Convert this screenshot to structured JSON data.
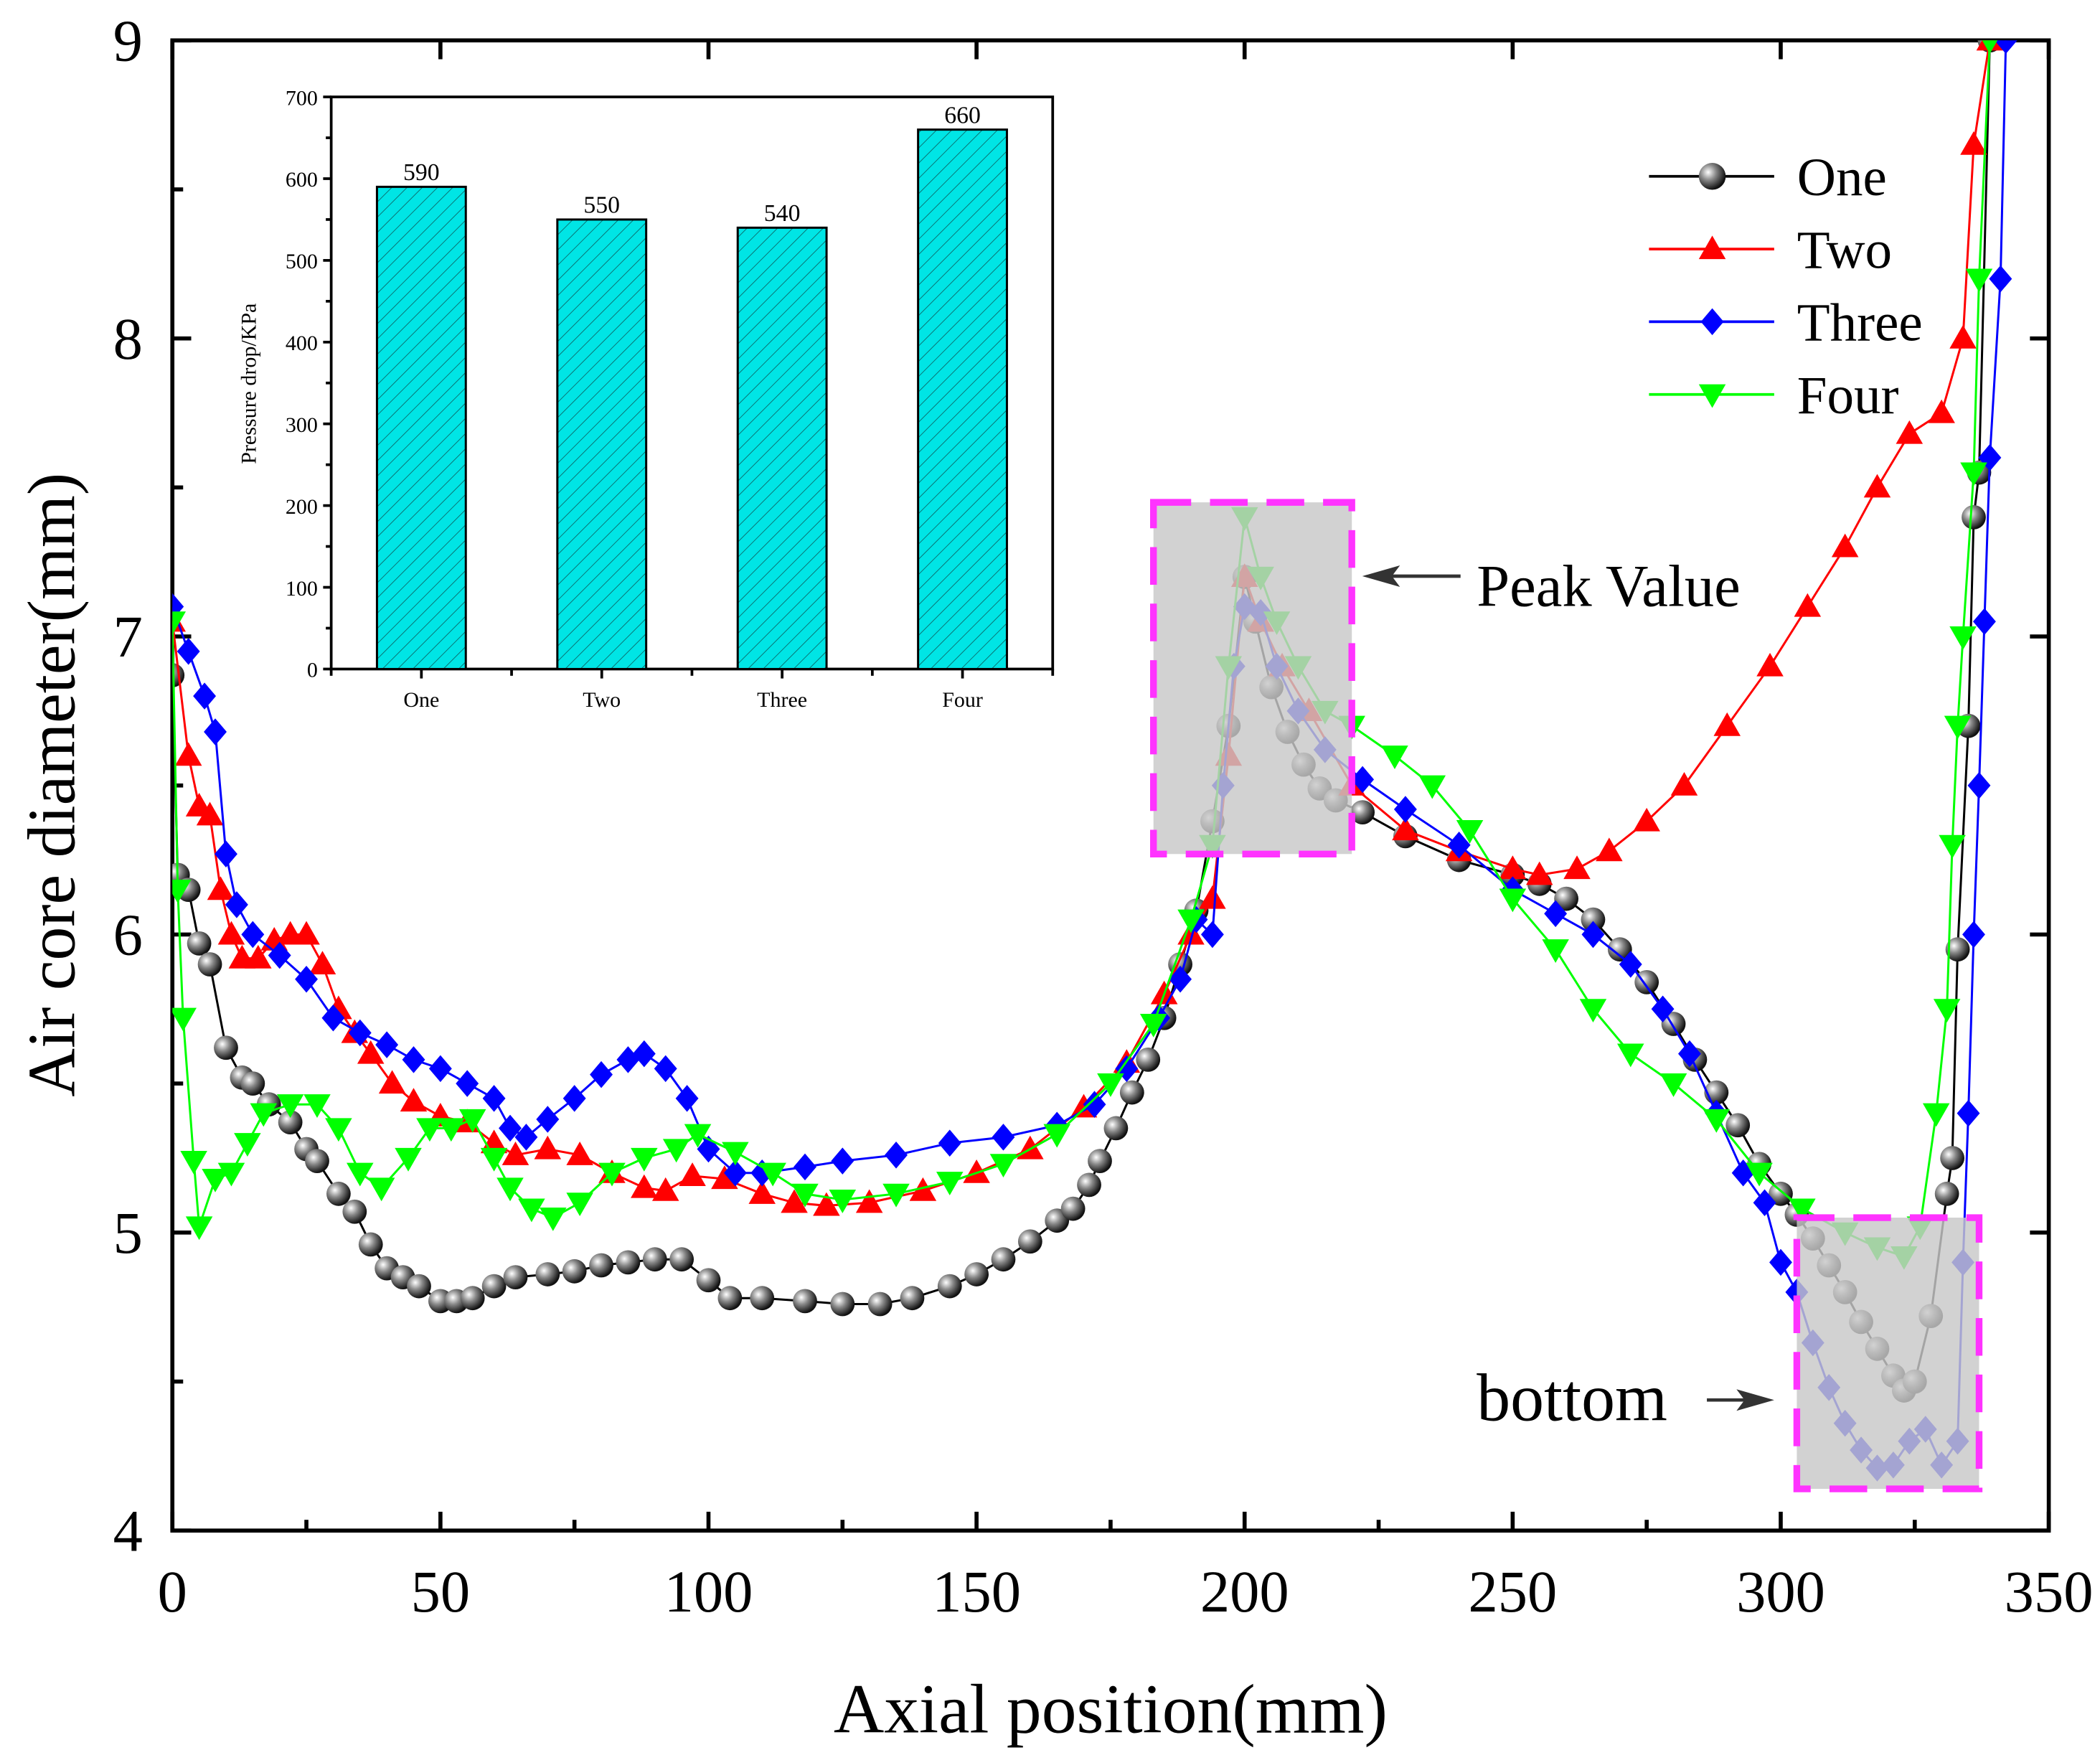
{
  "chart_data": [
    {
      "type": "line",
      "xlabel": "Axial position(mm)",
      "ylabel": "Air core diameter(mm)",
      "xlim": [
        0,
        350
      ],
      "ylim": [
        4,
        9
      ],
      "xticks": [
        "0",
        "50",
        "100",
        "150",
        "200",
        "250",
        "300",
        "350"
      ],
      "yticks": [
        "4",
        "5",
        "6",
        "7",
        "8",
        "9"
      ],
      "legend_position": "top-right",
      "series": [
        {
          "name": "One",
          "color": "#000000",
          "marker": "sphere",
          "x": [
            0,
            1,
            3,
            5,
            7,
            10,
            13,
            15,
            18,
            22,
            25,
            27,
            31,
            34,
            37,
            40,
            43,
            46,
            50,
            53,
            56,
            60,
            64,
            70,
            75,
            80,
            85,
            90,
            95,
            100,
            104,
            110,
            118,
            125,
            132,
            138,
            145,
            150,
            155,
            160,
            165,
            168,
            171,
            173,
            176,
            179,
            182,
            185,
            188,
            191,
            194,
            197,
            200,
            202,
            205,
            208,
            211,
            214,
            217,
            222,
            230,
            240,
            250,
            255,
            260,
            265,
            270,
            275,
            280,
            284,
            288,
            292,
            296,
            300,
            303,
            306,
            309,
            312,
            315,
            318,
            321,
            323,
            325,
            328,
            331,
            332,
            333,
            335,
            336,
            337,
            339
          ],
          "y": [
            6.87,
            6.2,
            6.15,
            5.97,
            5.9,
            5.62,
            5.52,
            5.5,
            5.43,
            5.37,
            5.28,
            5.24,
            5.13,
            5.07,
            4.96,
            4.88,
            4.85,
            4.82,
            4.77,
            4.77,
            4.78,
            4.82,
            4.85,
            4.86,
            4.87,
            4.89,
            4.9,
            4.91,
            4.91,
            4.84,
            4.78,
            4.78,
            4.77,
            4.76,
            4.76,
            4.78,
            4.82,
            4.86,
            4.91,
            4.97,
            5.04,
            5.08,
            5.16,
            5.24,
            5.35,
            5.47,
            5.58,
            5.72,
            5.9,
            6.08,
            6.38,
            6.7,
            7.2,
            7.05,
            6.83,
            6.68,
            6.57,
            6.49,
            6.45,
            6.41,
            6.33,
            6.25,
            6.2,
            6.17,
            6.12,
            6.05,
            5.95,
            5.84,
            5.7,
            5.58,
            5.47,
            5.36,
            5.23,
            5.13,
            5.06,
            4.98,
            4.89,
            4.8,
            4.7,
            4.61,
            4.52,
            4.47,
            4.5,
            4.72,
            5.13,
            5.25,
            5.95,
            6.7,
            7.4,
            7.55,
            9
          ]
        },
        {
          "name": "Two",
          "color": "#ff0000",
          "marker": "triangle-up",
          "x": [
            0,
            3,
            5,
            7,
            9,
            11,
            13,
            16,
            19,
            22,
            25,
            28,
            31,
            34,
            37,
            41,
            45,
            50,
            55,
            60,
            64,
            70,
            76,
            82,
            88,
            92,
            97,
            103,
            110,
            116,
            122,
            130,
            140,
            150,
            160,
            170,
            178,
            185,
            190,
            194,
            197,
            200,
            203,
            207,
            212,
            220,
            230,
            240,
            250,
            255,
            262,
            268,
            275,
            282,
            290,
            298,
            305,
            312,
            318,
            324,
            330,
            334,
            336,
            339
          ],
          "y": [
            7.05,
            6.6,
            6.43,
            6.4,
            6.15,
            6.0,
            5.92,
            5.92,
            5.98,
            6.0,
            6.0,
            5.9,
            5.75,
            5.67,
            5.6,
            5.5,
            5.44,
            5.39,
            5.37,
            5.3,
            5.26,
            5.28,
            5.26,
            5.2,
            5.15,
            5.14,
            5.19,
            5.18,
            5.13,
            5.1,
            5.09,
            5.1,
            5.14,
            5.2,
            5.28,
            5.42,
            5.57,
            5.8,
            6.0,
            6.12,
            6.6,
            7.2,
            7.05,
            6.9,
            6.75,
            6.5,
            6.35,
            6.28,
            6.22,
            6.2,
            6.22,
            6.28,
            6.38,
            6.5,
            6.7,
            6.9,
            7.1,
            7.3,
            7.5,
            7.68,
            7.75,
            8.0,
            8.65,
            9
          ]
        },
        {
          "name": "Three",
          "color": "#0000ff",
          "marker": "diamond",
          "x": [
            0,
            3,
            6,
            8,
            10,
            12,
            15,
            20,
            25,
            30,
            35,
            40,
            45,
            50,
            55,
            60,
            63,
            66,
            70,
            75,
            80,
            85,
            88,
            92,
            96,
            100,
            105,
            110,
            118,
            125,
            135,
            145,
            155,
            165,
            172,
            178,
            184,
            188,
            191,
            194,
            196,
            198,
            200,
            203,
            206,
            210,
            215,
            222,
            230,
            240,
            250,
            258,
            265,
            272,
            278,
            283,
            288,
            293,
            297,
            300,
            303,
            306,
            309,
            312,
            315,
            318,
            321,
            324,
            327,
            330,
            333,
            334,
            335,
            336,
            337,
            338,
            339,
            341,
            342
          ],
          "y": [
            7.1,
            6.95,
            6.8,
            6.68,
            6.27,
            6.1,
            6.0,
            5.93,
            5.85,
            5.72,
            5.67,
            5.63,
            5.58,
            5.55,
            5.5,
            5.45,
            5.35,
            5.32,
            5.38,
            5.45,
            5.53,
            5.58,
            5.6,
            5.55,
            5.45,
            5.28,
            5.2,
            5.2,
            5.22,
            5.24,
            5.26,
            5.3,
            5.32,
            5.36,
            5.43,
            5.55,
            5.72,
            5.85,
            6.05,
            6.0,
            6.5,
            6.9,
            7.1,
            7.08,
            6.9,
            6.75,
            6.62,
            6.52,
            6.42,
            6.3,
            6.15,
            6.07,
            6.0,
            5.9,
            5.75,
            5.6,
            5.4,
            5.2,
            5.1,
            4.9,
            4.8,
            4.63,
            4.48,
            4.36,
            4.27,
            4.21,
            4.22,
            4.3,
            4.34,
            4.22,
            4.3,
            4.9,
            5.4,
            6.0,
            6.5,
            7.05,
            7.6,
            8.2,
            9
          ]
        },
        {
          "name": "Four",
          "color": "#00ff00",
          "marker": "triangle-down",
          "x": [
            0,
            1,
            2,
            4,
            5,
            8,
            11,
            14,
            17,
            22,
            27,
            31,
            35,
            39,
            44,
            48,
            52,
            56,
            60,
            63,
            67,
            71,
            76,
            82,
            88,
            94,
            98,
            105,
            112,
            118,
            125,
            135,
            145,
            155,
            165,
            175,
            183,
            190,
            194,
            197,
            200,
            203,
            206,
            210,
            215,
            220,
            228,
            235,
            242,
            250,
            258,
            265,
            272,
            280,
            288,
            296,
            304,
            312,
            318,
            323,
            326,
            329,
            331,
            332,
            333,
            334,
            336,
            337,
            339
          ],
          "y": [
            7.05,
            6.15,
            5.72,
            5.24,
            5.02,
            5.18,
            5.2,
            5.3,
            5.4,
            5.43,
            5.43,
            5.35,
            5.2,
            5.15,
            5.25,
            5.35,
            5.35,
            5.38,
            5.25,
            5.15,
            5.08,
            5.05,
            5.1,
            5.2,
            5.25,
            5.28,
            5.33,
            5.27,
            5.2,
            5.13,
            5.11,
            5.13,
            5.17,
            5.23,
            5.33,
            5.5,
            5.7,
            6.05,
            6.3,
            6.9,
            7.4,
            7.2,
            7.05,
            6.9,
            6.75,
            6.7,
            6.6,
            6.5,
            6.35,
            6.12,
            5.95,
            5.75,
            5.6,
            5.5,
            5.38,
            5.2,
            5.08,
            5.0,
            4.95,
            4.92,
            5.02,
            5.4,
            5.75,
            6.3,
            6.7,
            7.0,
            7.55,
            8.2,
            9
          ]
        }
      ],
      "annotations": [
        {
          "text": "Peak Value",
          "highlight_x": [
            183,
            220
          ],
          "highlight_y": [
            6.27,
            7.45
          ]
        },
        {
          "text": "bottom",
          "highlight_x": [
            303,
            337
          ],
          "highlight_y": [
            4.14,
            5.05
          ]
        }
      ],
      "highlight_colors": {
        "fill": "#c8c8c8",
        "border": "#ff33ff"
      }
    },
    {
      "type": "bar",
      "title": "",
      "xlabel": "",
      "ylabel": "Pressure drop/KPa",
      "categories": [
        "One",
        "Two",
        "Three",
        "Four"
      ],
      "values": [
        590,
        550,
        540,
        660
      ],
      "value_labels": [
        "590",
        "550",
        "540",
        "660"
      ],
      "ylim": [
        0,
        700
      ],
      "yticks": [
        "0",
        "100",
        "200",
        "300",
        "400",
        "500",
        "600",
        "700"
      ],
      "bar_color": "#00e5e5"
    }
  ]
}
